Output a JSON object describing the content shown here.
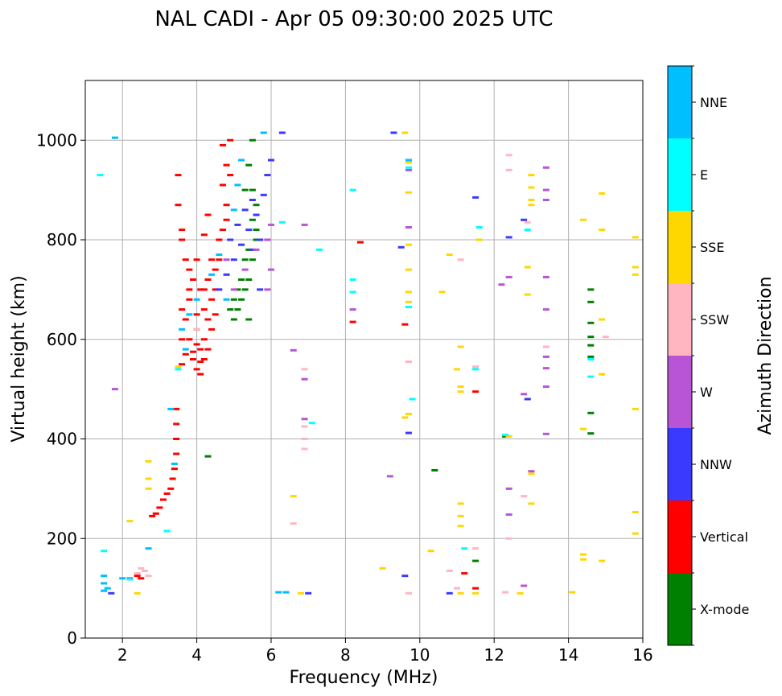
{
  "chart_data": {
    "type": "scatter",
    "title": "NAL CADI - Apr 05 09:30:00 2025 UTC",
    "xlabel": "Frequency (MHz)",
    "ylabel": "Virtual height (km)",
    "xlim": [
      1,
      16
    ],
    "ylim": [
      0,
      1120
    ],
    "xticks": [
      2,
      4,
      6,
      8,
      10,
      12,
      14,
      16
    ],
    "yticks": [
      0,
      200,
      400,
      600,
      800,
      1000
    ],
    "grid": true,
    "colorbar": {
      "title": "Azimuth Direction",
      "categories": [
        {
          "name": "X-mode",
          "color": "#008000"
        },
        {
          "name": "Vertical",
          "color": "#ff0000"
        },
        {
          "name": "NNW",
          "color": "#3a3aff"
        },
        {
          "name": "W",
          "color": "#b855d6"
        },
        {
          "name": "SSW",
          "color": "#ffb6c1"
        },
        {
          "name": "SSE",
          "color": "#ffd700"
        },
        {
          "name": "E",
          "color": "#00ffff"
        },
        {
          "name": "NNE",
          "color": "#00bfff"
        }
      ]
    },
    "series": [
      {
        "name": "Vertical",
        "points": [
          [
            2.4,
            125
          ],
          [
            2.5,
            120
          ],
          [
            2.8,
            245
          ],
          [
            2.9,
            250
          ],
          [
            3.0,
            262
          ],
          [
            3.1,
            278
          ],
          [
            3.2,
            290
          ],
          [
            3.3,
            300
          ],
          [
            3.35,
            320
          ],
          [
            3.4,
            340
          ],
          [
            3.45,
            370
          ],
          [
            3.45,
            400
          ],
          [
            3.45,
            430
          ],
          [
            3.45,
            460
          ],
          [
            3.6,
            550
          ],
          [
            3.7,
            570
          ],
          [
            3.8,
            600
          ],
          [
            3.9,
            560
          ],
          [
            4.0,
            540
          ],
          [
            4.1,
            530
          ],
          [
            4.2,
            560
          ],
          [
            4.3,
            580
          ],
          [
            4.4,
            620
          ],
          [
            4.5,
            650
          ],
          [
            3.6,
            600
          ],
          [
            3.7,
            640
          ],
          [
            3.8,
            680
          ],
          [
            3.9,
            720
          ],
          [
            4.0,
            760
          ],
          [
            4.1,
            700
          ],
          [
            4.2,
            660
          ],
          [
            4.3,
            720
          ],
          [
            4.4,
            680
          ],
          [
            3.6,
            800
          ],
          [
            3.7,
            760
          ],
          [
            3.8,
            740
          ],
          [
            4.0,
            620
          ],
          [
            4.1,
            580
          ],
          [
            4.2,
            600
          ],
          [
            4.3,
            640
          ],
          [
            4.5,
            700
          ],
          [
            4.6,
            760
          ],
          [
            4.7,
            820
          ],
          [
            4.8,
            870
          ],
          [
            4.7,
            910
          ],
          [
            4.8,
            950
          ],
          [
            4.7,
            990
          ],
          [
            4.9,
            1000
          ],
          [
            4.5,
            740
          ],
          [
            4.6,
            800
          ],
          [
            4.8,
            840
          ],
          [
            4.9,
            930
          ],
          [
            3.5,
            930
          ],
          [
            3.5,
            870
          ],
          [
            3.6,
            820
          ],
          [
            4.2,
            810
          ],
          [
            4.3,
            850
          ],
          [
            3.9,
            575
          ],
          [
            4.0,
            590
          ],
          [
            4.1,
            555
          ],
          [
            4.0,
            650
          ],
          [
            3.8,
            700
          ],
          [
            3.6,
            660
          ],
          [
            4.2,
            700
          ],
          [
            4.4,
            760
          ],
          [
            8.4,
            795
          ],
          [
            8.2,
            635
          ],
          [
            9.6,
            630
          ],
          [
            11.2,
            130
          ],
          [
            11.5,
            100
          ],
          [
            11.5,
            495
          ]
        ]
      },
      {
        "name": "X-mode",
        "points": [
          [
            4.3,
            365
          ],
          [
            5.0,
            640
          ],
          [
            5.1,
            660
          ],
          [
            5.2,
            680
          ],
          [
            5.3,
            700
          ],
          [
            5.4,
            720
          ],
          [
            5.5,
            760
          ],
          [
            5.6,
            800
          ],
          [
            5.5,
            840
          ],
          [
            5.6,
            870
          ],
          [
            5.5,
            900
          ],
          [
            5.4,
            950
          ],
          [
            5.5,
            1000
          ],
          [
            5.2,
            720
          ],
          [
            5.3,
            760
          ],
          [
            5.1,
            700
          ],
          [
            5.0,
            680
          ],
          [
            4.9,
            660
          ],
          [
            5.4,
            780
          ],
          [
            5.6,
            820
          ],
          [
            5.3,
            900
          ],
          [
            5.4,
            640
          ],
          [
            14.6,
            700
          ],
          [
            14.6,
            675
          ],
          [
            14.6,
            633
          ],
          [
            14.6,
            605
          ],
          [
            14.6,
            588
          ],
          [
            14.6,
            565
          ],
          [
            14.6,
            452
          ],
          [
            14.6,
            411
          ],
          [
            10.4,
            337
          ],
          [
            11.5,
            155
          ],
          [
            12.3,
            405
          ]
        ]
      },
      {
        "name": "NNW",
        "points": [
          [
            1.7,
            90
          ],
          [
            4.6,
            700
          ],
          [
            4.8,
            730
          ],
          [
            5.0,
            760
          ],
          [
            5.2,
            790
          ],
          [
            5.4,
            820
          ],
          [
            5.6,
            850
          ],
          [
            5.8,
            890
          ],
          [
            5.9,
            930
          ],
          [
            6.0,
            960
          ],
          [
            6.3,
            1015
          ],
          [
            5.7,
            800
          ],
          [
            5.5,
            780
          ],
          [
            4.9,
            800
          ],
          [
            5.1,
            830
          ],
          [
            5.3,
            860
          ],
          [
            5.5,
            880
          ],
          [
            5.7,
            700
          ],
          [
            7.0,
            90
          ],
          [
            9.6,
            125
          ],
          [
            9.7,
            412
          ],
          [
            9.5,
            785
          ],
          [
            11.5,
            885
          ],
          [
            12.4,
            805
          ],
          [
            12.8,
            840
          ],
          [
            12.9,
            480
          ],
          [
            10.8,
            90
          ],
          [
            9.3,
            1015
          ]
        ]
      },
      {
        "name": "W",
        "points": [
          [
            1.8,
            500
          ],
          [
            2.2,
            120
          ],
          [
            5.0,
            700
          ],
          [
            5.3,
            740
          ],
          [
            5.6,
            780
          ],
          [
            5.9,
            800
          ],
          [
            6.0,
            830
          ],
          [
            4.8,
            760
          ],
          [
            5.9,
            700
          ],
          [
            6.0,
            740
          ],
          [
            6.6,
            578
          ],
          [
            6.9,
            520
          ],
          [
            6.9,
            440
          ],
          [
            6.9,
            830
          ],
          [
            8.2,
            660
          ],
          [
            9.2,
            325
          ],
          [
            9.7,
            940
          ],
          [
            9.7,
            825
          ],
          [
            12.2,
            710
          ],
          [
            12.4,
            725
          ],
          [
            12.4,
            300
          ],
          [
            12.4,
            248
          ],
          [
            12.8,
            490
          ],
          [
            13.0,
            335
          ],
          [
            13.4,
            945
          ],
          [
            13.4,
            880
          ],
          [
            13.4,
            725
          ],
          [
            13.4,
            660
          ],
          [
            13.4,
            565
          ],
          [
            13.4,
            542
          ],
          [
            13.4,
            505
          ],
          [
            13.4,
            410
          ],
          [
            13.4,
            900
          ],
          [
            12.8,
            105
          ]
        ]
      },
      {
        "name": "SSW",
        "points": [
          [
            2.4,
            130
          ],
          [
            2.5,
            140
          ],
          [
            2.6,
            135
          ],
          [
            2.7,
            125
          ],
          [
            4.0,
            620
          ],
          [
            6.6,
            230
          ],
          [
            6.9,
            540
          ],
          [
            6.9,
            400
          ],
          [
            6.9,
            380
          ],
          [
            6.9,
            425
          ],
          [
            9.7,
            555
          ],
          [
            10.8,
            135
          ],
          [
            11.1,
            760
          ],
          [
            11.5,
            180
          ],
          [
            11.5,
            545
          ],
          [
            11.0,
            100
          ],
          [
            12.4,
            970
          ],
          [
            12.4,
            940
          ],
          [
            12.4,
            200
          ],
          [
            12.3,
            92
          ],
          [
            12.8,
            285
          ],
          [
            12.9,
            835
          ],
          [
            13.4,
            585
          ],
          [
            15.0,
            605
          ],
          [
            9.7,
            90
          ]
        ]
      },
      {
        "name": "SSE",
        "points": [
          [
            2.2,
            235
          ],
          [
            2.4,
            90
          ],
          [
            2.7,
            300
          ],
          [
            2.7,
            320
          ],
          [
            2.7,
            355
          ],
          [
            3.5,
            545
          ],
          [
            6.6,
            285
          ],
          [
            6.8,
            90
          ],
          [
            9.6,
            1015
          ],
          [
            9.7,
            955
          ],
          [
            9.7,
            895
          ],
          [
            9.7,
            790
          ],
          [
            9.7,
            740
          ],
          [
            9.7,
            695
          ],
          [
            9.7,
            675
          ],
          [
            9.6,
            443
          ],
          [
            9.7,
            450
          ],
          [
            9.0,
            140
          ],
          [
            10.3,
            175
          ],
          [
            10.6,
            695
          ],
          [
            10.8,
            770
          ],
          [
            11.0,
            540
          ],
          [
            11.1,
            585
          ],
          [
            11.1,
            505
          ],
          [
            11.1,
            495
          ],
          [
            11.1,
            270
          ],
          [
            11.1,
            245
          ],
          [
            11.1,
            225
          ],
          [
            11.1,
            90
          ],
          [
            11.5,
            90
          ],
          [
            11.6,
            800
          ],
          [
            12.4,
            405
          ],
          [
            12.7,
            90
          ],
          [
            12.9,
            745
          ],
          [
            12.9,
            690
          ],
          [
            13.0,
            930
          ],
          [
            13.0,
            905
          ],
          [
            13.0,
            880
          ],
          [
            13.0,
            870
          ],
          [
            13.0,
            330
          ],
          [
            13.0,
            270
          ],
          [
            14.1,
            92
          ],
          [
            14.4,
            840
          ],
          [
            14.4,
            420
          ],
          [
            14.4,
            168
          ],
          [
            14.4,
            158
          ],
          [
            14.9,
            893
          ],
          [
            14.9,
            820
          ],
          [
            14.9,
            640
          ],
          [
            14.9,
            530
          ],
          [
            14.9,
            155
          ],
          [
            15.8,
            805
          ],
          [
            15.8,
            745
          ],
          [
            15.8,
            730
          ],
          [
            15.8,
            460
          ],
          [
            15.8,
            253
          ],
          [
            15.8,
            210
          ]
        ]
      },
      {
        "name": "E",
        "points": [
          [
            1.5,
            175
          ],
          [
            1.4,
            930
          ],
          [
            2.2,
            118
          ],
          [
            3.2,
            215
          ],
          [
            3.5,
            540
          ],
          [
            6.3,
            835
          ],
          [
            7.3,
            780
          ],
          [
            7.1,
            432
          ],
          [
            8.2,
            900
          ],
          [
            8.2,
            720
          ],
          [
            8.2,
            695
          ],
          [
            9.7,
            665
          ],
          [
            9.8,
            480
          ],
          [
            11.2,
            180
          ],
          [
            11.5,
            540
          ],
          [
            11.6,
            825
          ],
          [
            12.3,
            408
          ],
          [
            12.9,
            820
          ],
          [
            14.6,
            560
          ],
          [
            14.6,
            525
          ],
          [
            9.7,
            945
          ]
        ]
      },
      {
        "name": "NNE",
        "points": [
          [
            1.5,
            95
          ],
          [
            1.5,
            110
          ],
          [
            1.5,
            125
          ],
          [
            1.6,
            100
          ],
          [
            1.8,
            1005
          ],
          [
            2.0,
            120
          ],
          [
            2.7,
            180
          ],
          [
            3.4,
            350
          ],
          [
            3.3,
            460
          ],
          [
            3.6,
            620
          ],
          [
            3.7,
            580
          ],
          [
            3.8,
            650
          ],
          [
            4.0,
            680
          ],
          [
            4.4,
            730
          ],
          [
            4.6,
            770
          ],
          [
            4.8,
            680
          ],
          [
            5.2,
            960
          ],
          [
            5.0,
            860
          ],
          [
            5.1,
            910
          ],
          [
            5.8,
            1015
          ],
          [
            6.2,
            92
          ],
          [
            6.4,
            92
          ],
          [
            9.7,
            960
          ]
        ]
      }
    ]
  }
}
